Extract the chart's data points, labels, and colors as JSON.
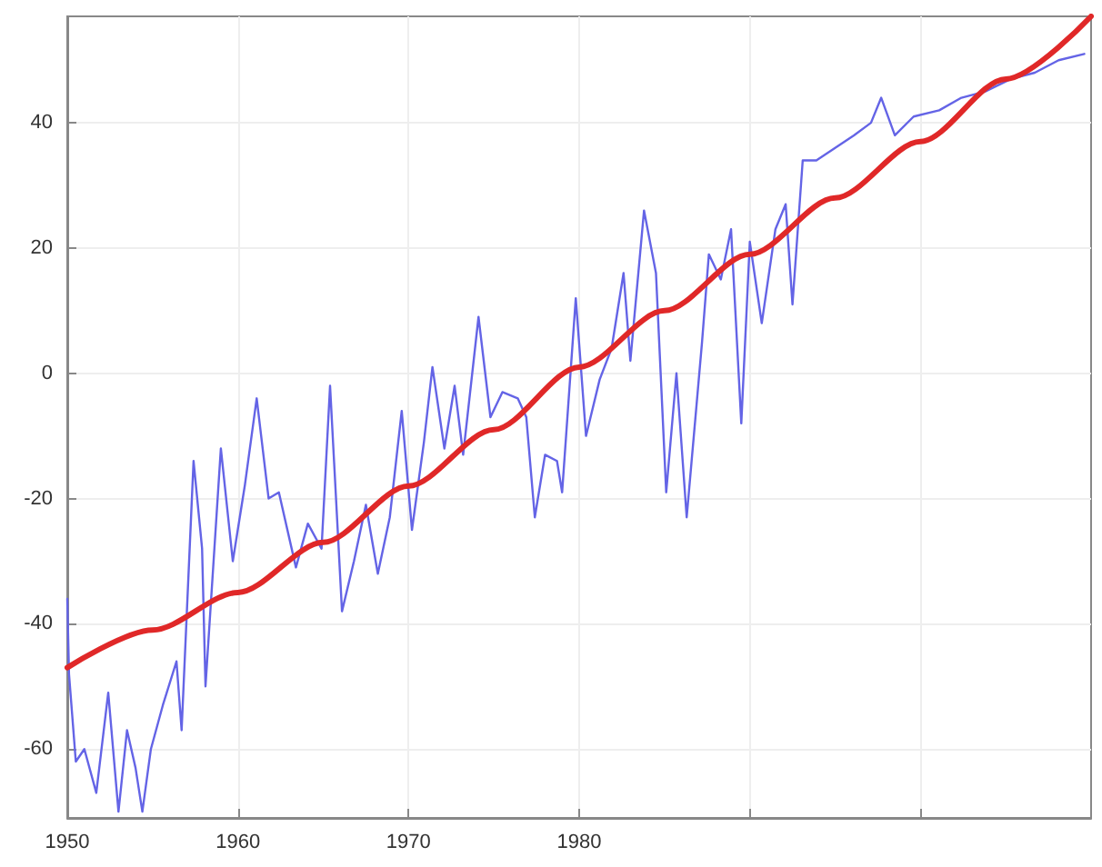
{
  "chart_data": {
    "type": "line",
    "xlim": [
      1950,
      2010
    ],
    "xticks": [
      1950,
      1960,
      1970,
      1980,
      {
        "value": 1990,
        "label": null
      },
      {
        "value": 2000,
        "label": null
      }
    ],
    "ylim": [
      -71,
      57
    ],
    "yticks": [
      -60,
      -40,
      -20,
      0,
      20,
      40
    ],
    "grid": true,
    "marker": "none",
    "line_style": "solid",
    "series": [
      {
        "color": "#6464e6",
        "x": [
          1950.0,
          1950.1,
          1950.5,
          1951.0,
          1951.7,
          1952.4,
          1953.0,
          1953.5,
          1954.0,
          1954.4,
          1954.9,
          1955.6,
          1956.4,
          1956.7,
          1957.4,
          1957.9,
          1958.1,
          1959.0,
          1959.7,
          1960.4,
          1961.1,
          1961.8,
          1962.4,
          1963.4,
          1964.1,
          1964.9,
          1965.4,
          1966.1,
          1966.8,
          1967.5,
          1968.2,
          1968.9,
          1969.6,
          1970.2,
          1970.9,
          1971.4,
          1972.1,
          1972.7,
          1973.2,
          1974.1,
          1974.8,
          1975.5,
          1976.4,
          1976.9,
          1977.4,
          1978.0,
          1978.7,
          1979.0,
          1979.8,
          1980.4,
          1981.2,
          1981.9,
          1982.6,
          1983.0,
          1983.8,
          1984.5,
          1985.1,
          1985.7,
          1986.3,
          1987.2,
          1987.6,
          1988.3,
          1988.9,
          1989.5,
          1990.0,
          1990.7,
          1991.5,
          1992.1,
          1992.5,
          1993.1,
          1993.9,
          1995.0,
          1996.1,
          1997.1,
          1997.7,
          1998.5,
          1999.6,
          2001.1,
          2002.4,
          2003.8,
          2005.3,
          2006.7,
          2008.1,
          2009.6
        ],
        "values": [
          -36,
          -48,
          -62,
          -60,
          -67,
          -51,
          -70,
          -57,
          -63,
          -70,
          -60,
          -53,
          -46,
          -57,
          -14,
          -28,
          -50,
          -12,
          -30,
          -18,
          -4,
          -20,
          -19,
          -31,
          -24,
          -28,
          -2,
          -38,
          -30,
          -21,
          -32,
          -23,
          -6,
          -25,
          -11,
          1,
          -12,
          -2,
          -13,
          9,
          -7,
          -3,
          -4,
          -7,
          -23,
          -13,
          -14,
          -19,
          12,
          -10,
          -1,
          4,
          16,
          2,
          26,
          16,
          -19,
          0,
          -23,
          5,
          19,
          15,
          23,
          -8,
          21,
          8,
          23,
          27,
          11,
          34,
          34,
          36,
          38,
          40,
          44,
          38,
          41,
          42,
          44,
          45,
          47,
          48,
          50,
          51
        ]
      },
      {
        "color": "#e02828",
        "x": [
          1950,
          1955,
          1960,
          1965,
          1970,
          1975,
          1980,
          1985,
          1990,
          1995,
          2000,
          2005,
          2010
        ],
        "values": [
          -47,
          -41,
          -35,
          -27,
          -18,
          -9,
          1,
          10,
          19,
          28,
          37,
          47,
          57
        ]
      }
    ]
  }
}
